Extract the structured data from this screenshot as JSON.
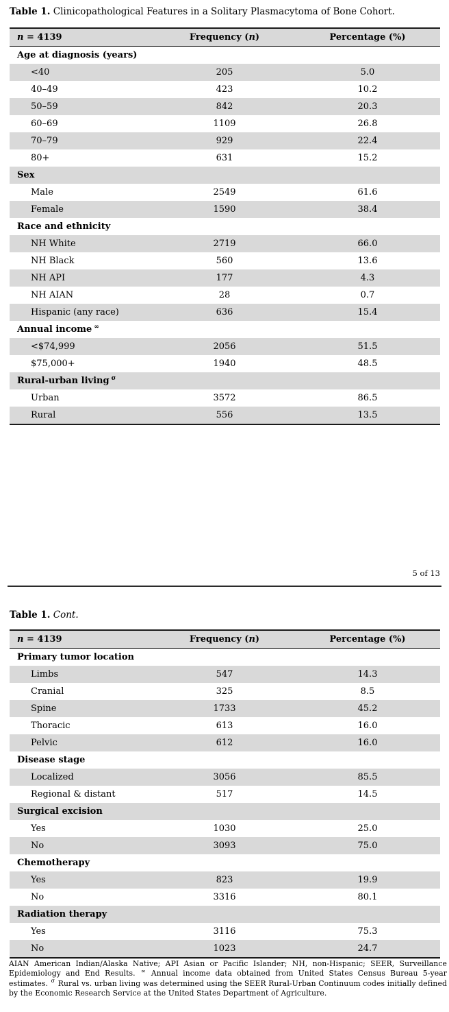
{
  "page": {
    "page_indicator": "5 of 13"
  },
  "colors": {
    "row_shade": "#d9d9d9",
    "rule": "#1a1a1a"
  },
  "table_header": {
    "col1_italic": "n",
    "col1_rest": " = 4139",
    "col2_pre": "Frequency (",
    "col2_italic": "n",
    "col2_post": ")",
    "col3": "Percentage (%)"
  },
  "table1": {
    "caption_label": "Table 1.",
    "caption_text": " Clinicopathological Features in a Solitary Plasmacytoma of Bone Cohort.",
    "rows": [
      {
        "type": "section",
        "label": "Age at diagnosis (years)",
        "sup": ""
      },
      {
        "type": "data",
        "label": "<40",
        "frequency": "205",
        "percentage": "5.0"
      },
      {
        "type": "data",
        "label": "40–49",
        "frequency": "423",
        "percentage": "10.2"
      },
      {
        "type": "data",
        "label": "50–59",
        "frequency": "842",
        "percentage": "20.3"
      },
      {
        "type": "data",
        "label": "60–69",
        "frequency": "1109",
        "percentage": "26.8"
      },
      {
        "type": "data",
        "label": "70–79",
        "frequency": "929",
        "percentage": "22.4"
      },
      {
        "type": "data",
        "label": "80+",
        "frequency": "631",
        "percentage": "15.2"
      },
      {
        "type": "section",
        "label": "Sex",
        "sup": ""
      },
      {
        "type": "data",
        "label": "Male",
        "frequency": "2549",
        "percentage": "61.6"
      },
      {
        "type": "data",
        "label": "Female",
        "frequency": "1590",
        "percentage": "38.4"
      },
      {
        "type": "section",
        "label": "Race and ethnicity",
        "sup": ""
      },
      {
        "type": "data",
        "label": "NH White",
        "frequency": "2719",
        "percentage": "66.0"
      },
      {
        "type": "data",
        "label": "NH Black",
        "frequency": "560",
        "percentage": "13.6"
      },
      {
        "type": "data",
        "label": "NH API",
        "frequency": "177",
        "percentage": "4.3"
      },
      {
        "type": "data",
        "label": "NH AIAN",
        "frequency": "28",
        "percentage": "0.7"
      },
      {
        "type": "data",
        "label": "Hispanic (any race)",
        "frequency": "636",
        "percentage": "15.4"
      },
      {
        "type": "section",
        "label": "Annual income",
        "sup": "∞"
      },
      {
        "type": "data",
        "label": "<$74,999",
        "frequency": "2056",
        "percentage": "51.5"
      },
      {
        "type": "data",
        "label": "$75,000+",
        "frequency": "1940",
        "percentage": "48.5"
      },
      {
        "type": "section",
        "label": "Rural-urban living",
        "sup": "σ"
      },
      {
        "type": "data",
        "label": "Urban",
        "frequency": "3572",
        "percentage": "86.5"
      },
      {
        "type": "data",
        "label": "Rural",
        "frequency": "556",
        "percentage": "13.5"
      }
    ]
  },
  "table2": {
    "caption_label": "Table 1.",
    "caption_cont": "Cont.",
    "rows": [
      {
        "type": "section",
        "label": "Primary tumor location",
        "sup": ""
      },
      {
        "type": "data",
        "label": "Limbs",
        "frequency": "547",
        "percentage": "14.3"
      },
      {
        "type": "data",
        "label": "Cranial",
        "frequency": "325",
        "percentage": "8.5"
      },
      {
        "type": "data",
        "label": "Spine",
        "frequency": "1733",
        "percentage": "45.2"
      },
      {
        "type": "data",
        "label": "Thoracic",
        "frequency": "613",
        "percentage": "16.0"
      },
      {
        "type": "data",
        "label": "Pelvic",
        "frequency": "612",
        "percentage": "16.0"
      },
      {
        "type": "section",
        "label": "Disease stage",
        "sup": ""
      },
      {
        "type": "data",
        "label": "Localized",
        "frequency": "3056",
        "percentage": "85.5"
      },
      {
        "type": "data",
        "label": "Regional & distant",
        "frequency": "517",
        "percentage": "14.5"
      },
      {
        "type": "section",
        "label": "Surgical excision",
        "sup": ""
      },
      {
        "type": "data",
        "label": "Yes",
        "frequency": "1030",
        "percentage": "25.0"
      },
      {
        "type": "data",
        "label": "No",
        "frequency": "3093",
        "percentage": "75.0"
      },
      {
        "type": "section",
        "label": "Chemotherapy",
        "sup": ""
      },
      {
        "type": "data",
        "label": "Yes",
        "frequency": "823",
        "percentage": "19.9"
      },
      {
        "type": "data",
        "label": "No",
        "frequency": "3316",
        "percentage": "80.1"
      },
      {
        "type": "section",
        "label": "Radiation therapy",
        "sup": ""
      },
      {
        "type": "data",
        "label": "Yes",
        "frequency": "3116",
        "percentage": "75.3"
      },
      {
        "type": "data",
        "label": "No",
        "frequency": "1023",
        "percentage": "24.7"
      }
    ]
  },
  "footnote": {
    "segments": [
      {
        "text": "AIAN American Indian/Alaska Native; API Asian or Pacific Islander; NH, non-Hispanic; SEER, Surveillance Epidemiology and End Results. "
      },
      {
        "sup": "∞"
      },
      {
        "text": " Annual income data obtained from United States Census Bureau 5-year estimates. "
      },
      {
        "sup": "σ"
      },
      {
        "text": " Rural vs. urban living was determined using the SEER Rural-Urban Continuum codes initially defined by the Economic Research Service at the United States Department of Agriculture."
      }
    ]
  }
}
